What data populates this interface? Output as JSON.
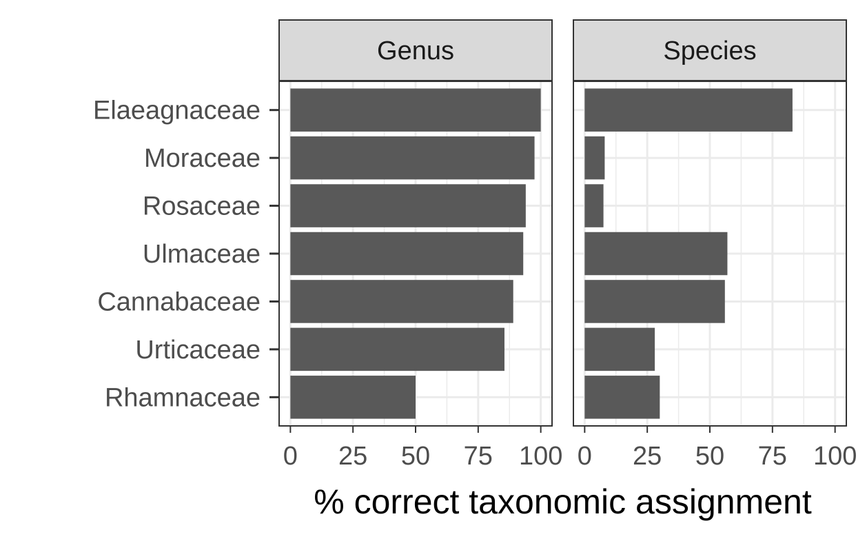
{
  "chart_data": {
    "type": "bar",
    "orientation": "horizontal",
    "facet_by": "rank",
    "categories": [
      "Elaeagnaceae",
      "Moraceae",
      "Rosaceae",
      "Ulmaceae",
      "Cannabaceae",
      "Urticaceae",
      "Rhamnaceae"
    ],
    "panels": [
      {
        "name": "Genus",
        "values": [
          100,
          97.5,
          94,
          93,
          89,
          85.5,
          50
        ]
      },
      {
        "name": "Species",
        "values": [
          83,
          8,
          7.5,
          57,
          56,
          28,
          30
        ]
      }
    ],
    "xlabel": "% correct taxonomic assignment",
    "xlim": [
      -4.5,
      104.5
    ],
    "x_ticks": [
      0,
      25,
      50,
      75,
      100
    ],
    "x_tick_labels": [
      "0",
      "25",
      "50",
      "75",
      "100"
    ],
    "grid": true,
    "colors": {
      "bar": "#595959",
      "strip_bg": "#d9d9d9",
      "panel_border": "#333333",
      "grid": "#ebebeb"
    }
  }
}
